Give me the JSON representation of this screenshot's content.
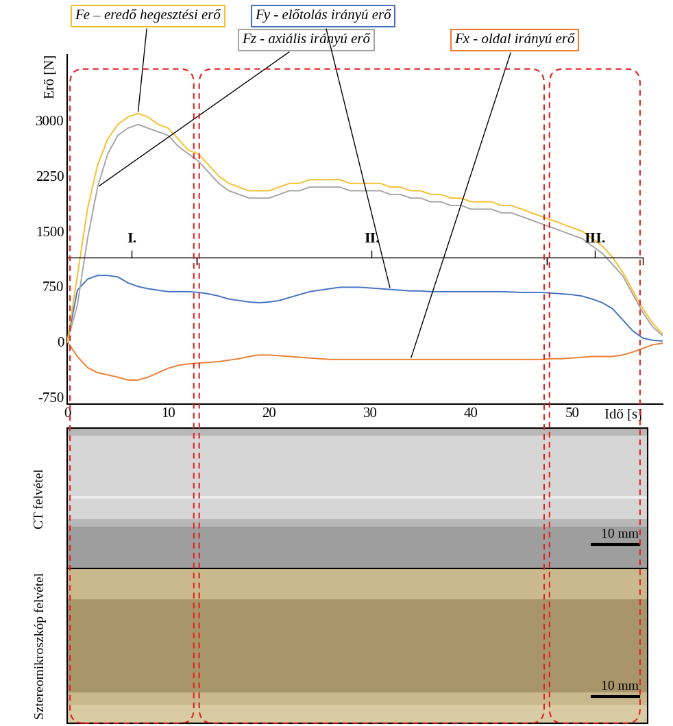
{
  "chart_data": {
    "type": "line",
    "x_label": "Idő [s]",
    "y_label": "Erő [N]",
    "x": [
      0,
      1,
      2,
      3,
      4,
      5,
      6,
      7,
      8,
      9,
      10,
      11,
      12,
      13,
      14,
      15,
      16,
      17,
      18,
      19,
      20,
      21,
      22,
      23,
      24,
      25,
      26,
      27,
      28,
      29,
      30,
      31,
      32,
      33,
      34,
      35,
      36,
      37,
      38,
      39,
      40,
      41,
      42,
      43,
      44,
      45,
      46,
      47,
      48,
      49,
      50,
      51,
      52,
      53,
      54,
      55,
      56,
      57,
      58,
      59
    ],
    "xlim": [
      0,
      59
    ],
    "xticks": [
      0,
      10,
      20,
      30,
      40,
      50
    ],
    "ylim": [
      -850,
      3900
    ],
    "yticks": [
      -750,
      0,
      750,
      1500,
      2250,
      3000
    ],
    "series": [
      {
        "name": "Fe – eredő hegesztési erő",
        "color": "#f5c02c",
        "values": [
          0,
          900,
          1800,
          2400,
          2750,
          2950,
          3050,
          3100,
          3050,
          2950,
          2900,
          2750,
          2600,
          2550,
          2400,
          2250,
          2150,
          2100,
          2050,
          2050,
          2050,
          2100,
          2150,
          2150,
          2200,
          2200,
          2200,
          2200,
          2150,
          2150,
          2150,
          2150,
          2100,
          2100,
          2050,
          2050,
          2000,
          2000,
          1950,
          1950,
          1900,
          1900,
          1900,
          1850,
          1850,
          1800,
          1750,
          1700,
          1650,
          1600,
          1550,
          1500,
          1400,
          1300,
          1150,
          950,
          700,
          450,
          250,
          100
        ]
      },
      {
        "name": "Fz - axiális irányú erő",
        "color": "#a5a5a5",
        "values": [
          0,
          500,
          1400,
          2100,
          2550,
          2800,
          2900,
          2950,
          2900,
          2850,
          2800,
          2650,
          2550,
          2450,
          2300,
          2150,
          2050,
          2000,
          1950,
          1950,
          1950,
          2000,
          2050,
          2050,
          2100,
          2100,
          2100,
          2100,
          2050,
          2050,
          2050,
          2050,
          2000,
          2000,
          1950,
          1950,
          1900,
          1900,
          1850,
          1850,
          1800,
          1800,
          1800,
          1750,
          1750,
          1700,
          1650,
          1600,
          1550,
          1500,
          1450,
          1400,
          1300,
          1200,
          1050,
          900,
          650,
          400,
          200,
          80
        ]
      },
      {
        "name": "Fy - előtolás irányú erő",
        "color": "#4472c4",
        "values": [
          0,
          700,
          850,
          900,
          900,
          880,
          800,
          750,
          720,
          700,
          680,
          680,
          680,
          670,
          650,
          620,
          580,
          560,
          540,
          530,
          540,
          560,
          600,
          640,
          680,
          700,
          720,
          740,
          740,
          740,
          730,
          720,
          710,
          700,
          690,
          690,
          680,
          680,
          680,
          680,
          680,
          680,
          680,
          680,
          675,
          670,
          670,
          670,
          660,
          650,
          640,
          620,
          580,
          530,
          450,
          300,
          150,
          50,
          20,
          10
        ]
      },
      {
        "name": "Fx - oldal irányú erő",
        "color": "#ed7d31",
        "values": [
          0,
          -200,
          -350,
          -420,
          -450,
          -480,
          -520,
          -520,
          -480,
          -420,
          -360,
          -320,
          -300,
          -290,
          -280,
          -270,
          -250,
          -230,
          -200,
          -180,
          -180,
          -190,
          -200,
          -210,
          -220,
          -230,
          -240,
          -240,
          -240,
          -240,
          -240,
          -240,
          -240,
          -240,
          -240,
          -240,
          -240,
          -240,
          -240,
          -240,
          -240,
          -240,
          -240,
          -240,
          -240,
          -240,
          -240,
          -240,
          -230,
          -230,
          -220,
          -210,
          -200,
          -200,
          -200,
          -180,
          -140,
          -90,
          -40,
          -20
        ]
      }
    ],
    "regions": [
      {
        "label": "I.",
        "start": 0,
        "end": 12.8
      },
      {
        "label": "II.",
        "start": 12.8,
        "end": 47.5
      },
      {
        "label": "III.",
        "start": 47.5,
        "end": 57
      }
    ]
  },
  "images": [
    {
      "label": "CT felvétel",
      "scale_bar": "10 mm"
    },
    {
      "label": "Sztereomikroszkóp felvétel",
      "scale_bar": "10 mm"
    }
  ]
}
